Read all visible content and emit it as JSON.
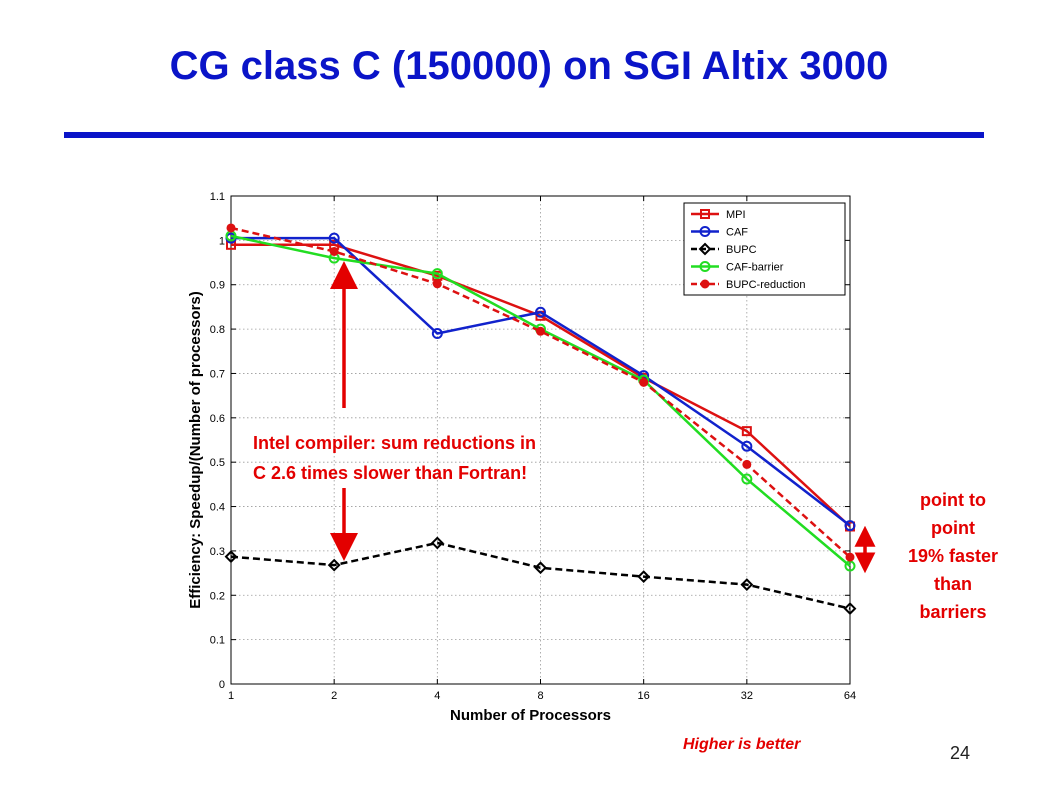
{
  "slide": {
    "title": "CG class C (150000) on SGI Altix 3000",
    "page_number": "24",
    "annotations": {
      "intel_line1": "Intel compiler: sum reductions in",
      "intel_line2": "C 2.6 times slower than Fortran!",
      "p2p_line1": "point to",
      "p2p_line2": "point",
      "p2p_line3": "19% faster",
      "p2p_line4": "than",
      "p2p_line5": "barriers",
      "higher_is_better": "Higher is better"
    },
    "colors": {
      "title": "#0a14c8",
      "annotation": "#e30000",
      "arrow": "#e30000"
    }
  },
  "chart_data": {
    "type": "line",
    "xlabel": "Number of Processors",
    "ylabel": "Efficiency: Speedup/(Number of processors)",
    "x_ticks": [
      "1",
      "2",
      "4",
      "8",
      "16",
      "32",
      "64"
    ],
    "y_ticks": [
      "0",
      "0.1",
      "0.2",
      "0.3",
      "0.4",
      "0.5",
      "0.6",
      "0.7",
      "0.8",
      "0.9",
      "1",
      "1.1"
    ],
    "ylim": [
      0,
      1.1
    ],
    "grid": true,
    "legend_position": "top-right",
    "series": [
      {
        "name": "MPI",
        "color": "#dd1111",
        "dash": "solid",
        "marker": "square",
        "x": [
          1,
          2,
          4,
          8,
          16,
          32,
          64
        ],
        "values": [
          0.99,
          0.99,
          0.92,
          0.83,
          0.69,
          0.57,
          0.355
        ]
      },
      {
        "name": "CAF",
        "color": "#1122cc",
        "dash": "solid",
        "marker": "circle",
        "x": [
          1,
          2,
          4,
          8,
          16,
          32,
          64
        ],
        "values": [
          1.005,
          1.005,
          0.79,
          0.838,
          0.695,
          0.536,
          0.357
        ]
      },
      {
        "name": "BUPC",
        "color": "#000000",
        "dash": "dashed",
        "marker": "diamond",
        "x": [
          1,
          2,
          4,
          8,
          16,
          32,
          64
        ],
        "values": [
          0.287,
          0.268,
          0.318,
          0.262,
          0.242,
          0.224,
          0.17
        ]
      },
      {
        "name": "CAF-barrier",
        "color": "#22dd22",
        "dash": "solid",
        "marker": "circle",
        "x": [
          1,
          2,
          4,
          8,
          16,
          32,
          64
        ],
        "values": [
          1.01,
          0.96,
          0.925,
          0.8,
          0.685,
          0.462,
          0.266
        ]
      },
      {
        "name": "BUPC-reduction",
        "color": "#dd1111",
        "dash": "dashed",
        "marker": "dot",
        "x": [
          1,
          2,
          4,
          8,
          16,
          32,
          64
        ],
        "values": [
          1.028,
          0.975,
          0.902,
          0.795,
          0.68,
          0.495,
          0.286
        ]
      }
    ]
  }
}
